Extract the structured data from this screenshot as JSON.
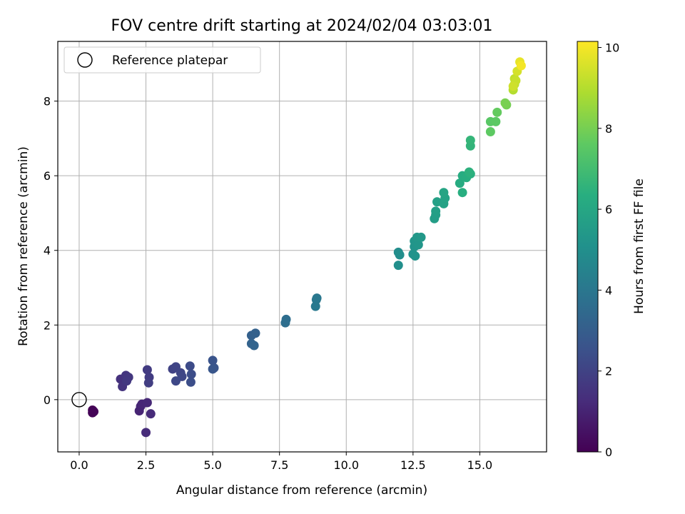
{
  "chart_data": {
    "type": "scatter",
    "title": "FOV centre drift starting at 2024/02/04 03:03:01",
    "xlabel": "Angular distance from reference (arcmin)",
    "ylabel": "Rotation from reference (arcmin)",
    "xlim": [
      -0.8,
      17.5
    ],
    "ylim": [
      -1.4,
      9.6
    ],
    "xticks": [
      0.0,
      2.5,
      5.0,
      7.5,
      10.0,
      12.5,
      15.0
    ],
    "xtick_labels": [
      "0.0",
      "2.5",
      "5.0",
      "7.5",
      "10.0",
      "12.5",
      "15.0"
    ],
    "yticks": [
      0,
      2,
      4,
      6,
      8
    ],
    "ytick_labels": [
      "0",
      "2",
      "4",
      "6",
      "8"
    ],
    "grid": true,
    "legend": {
      "placement": "top-left",
      "entries": [
        "Reference platepar"
      ]
    },
    "reference_point": {
      "x": 0.0,
      "y": 0.0
    },
    "colorbar": {
      "label": "Hours from first FF file",
      "colormap": "viridis",
      "range": [
        0,
        10.15
      ],
      "ticks": [
        0,
        2,
        4,
        6,
        8,
        10
      ],
      "tick_labels": [
        "0",
        "2",
        "4",
        "6",
        "8",
        "10"
      ]
    },
    "points": [
      {
        "x": 0.5,
        "y": -0.28,
        "h": 0.0
      },
      {
        "x": 0.5,
        "y": -0.35,
        "h": 0.05
      },
      {
        "x": 0.55,
        "y": -0.32,
        "h": 0.1
      },
      {
        "x": 2.25,
        "y": -0.3,
        "h": 1.0
      },
      {
        "x": 2.3,
        "y": -0.18,
        "h": 1.05
      },
      {
        "x": 2.35,
        "y": -0.12,
        "h": 1.1
      },
      {
        "x": 2.55,
        "y": -0.08,
        "h": 1.15
      },
      {
        "x": 2.68,
        "y": -0.38,
        "h": 1.2
      },
      {
        "x": 2.5,
        "y": -0.88,
        "h": 1.25
      },
      {
        "x": 1.55,
        "y": 0.55,
        "h": 1.4
      },
      {
        "x": 1.65,
        "y": 0.48,
        "h": 1.45
      },
      {
        "x": 1.62,
        "y": 0.35,
        "h": 1.5
      },
      {
        "x": 1.75,
        "y": 0.65,
        "h": 1.55
      },
      {
        "x": 1.85,
        "y": 0.6,
        "h": 1.6
      },
      {
        "x": 1.78,
        "y": 0.5,
        "h": 1.65
      },
      {
        "x": 2.55,
        "y": 0.8,
        "h": 1.75
      },
      {
        "x": 2.62,
        "y": 0.6,
        "h": 1.8
      },
      {
        "x": 2.6,
        "y": 0.45,
        "h": 1.85
      },
      {
        "x": 3.5,
        "y": 0.82,
        "h": 2.0
      },
      {
        "x": 3.62,
        "y": 0.88,
        "h": 2.05
      },
      {
        "x": 3.8,
        "y": 0.72,
        "h": 2.1
      },
      {
        "x": 3.85,
        "y": 0.62,
        "h": 2.15
      },
      {
        "x": 3.62,
        "y": 0.5,
        "h": 2.2
      },
      {
        "x": 4.15,
        "y": 0.9,
        "h": 2.3
      },
      {
        "x": 4.2,
        "y": 0.68,
        "h": 2.35
      },
      {
        "x": 4.18,
        "y": 0.47,
        "h": 2.4
      },
      {
        "x": 5.0,
        "y": 1.05,
        "h": 2.6
      },
      {
        "x": 5.05,
        "y": 0.85,
        "h": 2.65
      },
      {
        "x": 5.0,
        "y": 0.82,
        "h": 2.7
      },
      {
        "x": 6.45,
        "y": 1.72,
        "h": 3.1
      },
      {
        "x": 6.6,
        "y": 1.78,
        "h": 3.15
      },
      {
        "x": 6.45,
        "y": 1.5,
        "h": 3.2
      },
      {
        "x": 6.55,
        "y": 1.45,
        "h": 3.25
      },
      {
        "x": 7.75,
        "y": 2.15,
        "h": 3.6
      },
      {
        "x": 7.72,
        "y": 2.06,
        "h": 3.65
      },
      {
        "x": 8.9,
        "y": 2.72,
        "h": 4.0
      },
      {
        "x": 8.88,
        "y": 2.68,
        "h": 4.05
      },
      {
        "x": 8.85,
        "y": 2.5,
        "h": 4.1
      },
      {
        "x": 11.95,
        "y": 3.95,
        "h": 4.9
      },
      {
        "x": 12.0,
        "y": 3.88,
        "h": 4.95
      },
      {
        "x": 11.95,
        "y": 3.6,
        "h": 5.0
      },
      {
        "x": 12.5,
        "y": 3.9,
        "h": 5.1
      },
      {
        "x": 12.58,
        "y": 3.85,
        "h": 5.15
      },
      {
        "x": 12.55,
        "y": 4.1,
        "h": 5.2
      },
      {
        "x": 12.55,
        "y": 4.25,
        "h": 5.25
      },
      {
        "x": 12.7,
        "y": 4.15,
        "h": 5.3
      },
      {
        "x": 12.65,
        "y": 4.35,
        "h": 5.35
      },
      {
        "x": 12.8,
        "y": 4.35,
        "h": 5.4
      },
      {
        "x": 13.3,
        "y": 4.85,
        "h": 5.6
      },
      {
        "x": 13.35,
        "y": 4.95,
        "h": 5.65
      },
      {
        "x": 13.35,
        "y": 5.05,
        "h": 5.7
      },
      {
        "x": 13.4,
        "y": 5.3,
        "h": 5.75
      },
      {
        "x": 13.65,
        "y": 5.25,
        "h": 5.8
      },
      {
        "x": 13.7,
        "y": 5.4,
        "h": 5.85
      },
      {
        "x": 13.65,
        "y": 5.55,
        "h": 5.9
      },
      {
        "x": 14.25,
        "y": 5.8,
        "h": 6.2
      },
      {
        "x": 14.35,
        "y": 6.0,
        "h": 6.25
      },
      {
        "x": 14.5,
        "y": 5.95,
        "h": 6.3
      },
      {
        "x": 14.35,
        "y": 5.55,
        "h": 6.35
      },
      {
        "x": 14.65,
        "y": 6.05,
        "h": 6.4
      },
      {
        "x": 14.6,
        "y": 6.1,
        "h": 6.45
      },
      {
        "x": 14.65,
        "y": 6.8,
        "h": 6.6
      },
      {
        "x": 14.65,
        "y": 6.95,
        "h": 6.65
      },
      {
        "x": 15.4,
        "y": 7.45,
        "h": 7.5
      },
      {
        "x": 15.6,
        "y": 7.45,
        "h": 7.55
      },
      {
        "x": 15.4,
        "y": 7.18,
        "h": 7.6
      },
      {
        "x": 15.65,
        "y": 7.7,
        "h": 7.7
      },
      {
        "x": 16.0,
        "y": 7.9,
        "h": 8.0
      },
      {
        "x": 15.95,
        "y": 7.95,
        "h": 8.05
      },
      {
        "x": 16.25,
        "y": 8.3,
        "h": 9.0
      },
      {
        "x": 16.3,
        "y": 8.45,
        "h": 9.1
      },
      {
        "x": 16.3,
        "y": 8.6,
        "h": 9.2
      },
      {
        "x": 16.35,
        "y": 8.55,
        "h": 9.3
      },
      {
        "x": 16.4,
        "y": 8.8,
        "h": 9.5
      },
      {
        "x": 16.5,
        "y": 9.05,
        "h": 9.8
      },
      {
        "x": 16.55,
        "y": 8.95,
        "h": 10.0
      },
      {
        "x": 16.25,
        "y": 8.4,
        "h": 9.4
      }
    ]
  }
}
